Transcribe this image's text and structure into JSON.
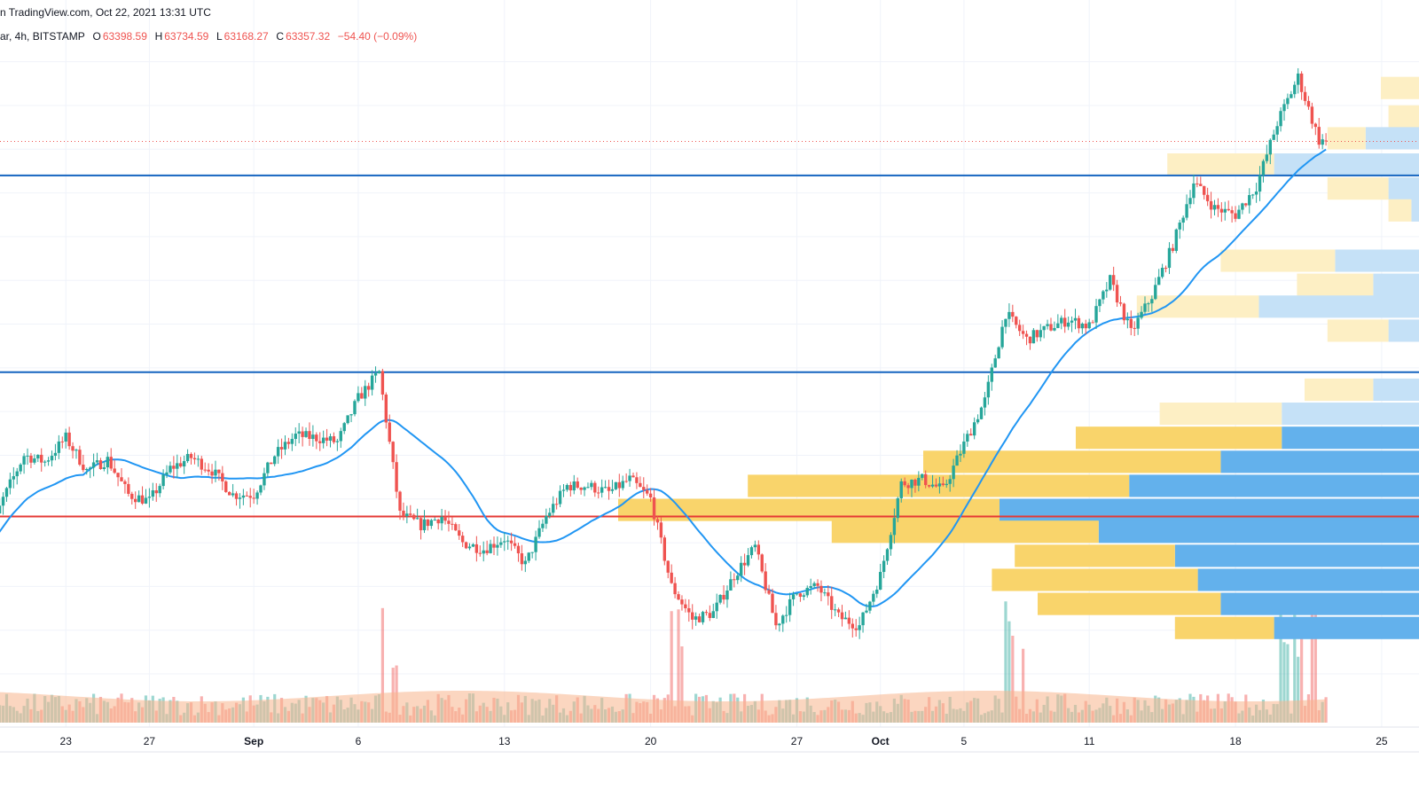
{
  "header": {
    "source_line": "n TradingView.com, Oct 22, 2021 13:31 UTC",
    "symbol_prefix": "ar, 4h, BITSTAMP",
    "open_label": "O",
    "open": "63398.59",
    "high_label": "H",
    "high": "63734.59",
    "low_label": "L",
    "low": "63168.27",
    "close_label": "C",
    "close": "63357.32",
    "change": "−54.40 (−0.09%)"
  },
  "colors": {
    "up": "#26a69a",
    "down": "#ef5350",
    "ma": "#2196f3",
    "level": "#1565c0",
    "support": "#e53935",
    "last_price": "#ef5350",
    "vp_up": "#f9d46b",
    "vp_down": "#63b1ec",
    "vp_up_far": "#fdefc4",
    "vp_down_far": "#c5e1f7",
    "volume_ma": "#f7b58c",
    "grid": "#f0f3fa"
  },
  "chart_data": {
    "type": "candlestick",
    "interval": "4h",
    "exchange": "BITSTAMP",
    "last_ohlc": {
      "open": 63398.59,
      "high": 63734.59,
      "low": 63168.27,
      "close": 63357.32,
      "change": -54.4,
      "change_pct": -0.09
    },
    "x_ticks": [
      "23",
      "27",
      "Sep",
      "6",
      "13",
      "20",
      "27",
      "Oct",
      "5",
      "11",
      "18",
      "25"
    ],
    "bold_ticks": [
      "Sep",
      "Oct"
    ],
    "x_range": [
      "2021-08-19",
      "2021-10-27"
    ],
    "price_range": [
      39000,
      68000
    ],
    "grid": true,
    "horizontal_levels": [
      {
        "price": 61800,
        "kind": "resistance"
      },
      {
        "price": 52800,
        "kind": "resistance"
      },
      {
        "price": 46200,
        "kind": "support"
      }
    ],
    "moving_average_note": "single moving average overlay",
    "price_path": [
      [
        "2021-08-19",
        44500
      ],
      [
        "2021-08-20",
        47000
      ],
      [
        "2021-08-21",
        49000
      ],
      [
        "2021-08-22",
        48700
      ],
      [
        "2021-08-23",
        49800
      ],
      [
        "2021-08-24",
        48300
      ],
      [
        "2021-08-25",
        48800
      ],
      [
        "2021-08-26",
        47200
      ],
      [
        "2021-08-27",
        46900
      ],
      [
        "2021-08-28",
        48400
      ],
      [
        "2021-08-29",
        48900
      ],
      [
        "2021-08-30",
        48300
      ],
      [
        "2021-08-31",
        47200
      ],
      [
        "2021-09-01",
        47200
      ],
      [
        "2021-09-02",
        49000
      ],
      [
        "2021-09-03",
        49900
      ],
      [
        "2021-09-04",
        49800
      ],
      [
        "2021-09-05",
        49600
      ],
      [
        "2021-09-06",
        51600
      ],
      [
        "2021-09-07",
        52800
      ],
      [
        "2021-09-08",
        46300
      ],
      [
        "2021-09-09",
        45800
      ],
      [
        "2021-09-10",
        46200
      ],
      [
        "2021-09-11",
        45000
      ],
      [
        "2021-09-12",
        44700
      ],
      [
        "2021-09-13",
        45200
      ],
      [
        "2021-09-14",
        44000
      ],
      [
        "2021-09-15",
        46200
      ],
      [
        "2021-09-16",
        47600
      ],
      [
        "2021-09-17",
        47600
      ],
      [
        "2021-09-18",
        47300
      ],
      [
        "2021-09-19",
        47900
      ],
      [
        "2021-09-20",
        47000
      ],
      [
        "2021-09-21",
        43000
      ],
      [
        "2021-09-22",
        41500
      ],
      [
        "2021-09-23",
        41800
      ],
      [
        "2021-09-24",
        43500
      ],
      [
        "2021-09-25",
        44800
      ],
      [
        "2021-09-26",
        41200
      ],
      [
        "2021-09-27",
        42700
      ],
      [
        "2021-09-28",
        43000
      ],
      [
        "2021-09-29",
        41600
      ],
      [
        "2021-09-30",
        41200
      ],
      [
        "2021-10-01",
        43500
      ],
      [
        "2021-10-02",
        47700
      ],
      [
        "2021-10-03",
        47900
      ],
      [
        "2021-10-04",
        47400
      ],
      [
        "2021-10-05",
        49500
      ],
      [
        "2021-10-06",
        51500
      ],
      [
        "2021-10-07",
        55500
      ],
      [
        "2021-10-08",
        54300
      ],
      [
        "2021-10-09",
        54800
      ],
      [
        "2021-10-10",
        55200
      ],
      [
        "2021-10-11",
        54900
      ],
      [
        "2021-10-12",
        57000
      ],
      [
        "2021-10-13",
        54600
      ],
      [
        "2021-10-14",
        56300
      ],
      [
        "2021-10-15",
        58600
      ],
      [
        "2021-10-16",
        61500
      ],
      [
        "2021-10-17",
        60300
      ],
      [
        "2021-10-18",
        60000
      ],
      [
        "2021-10-19",
        61300
      ],
      [
        "2021-10-20",
        64200
      ],
      [
        "2021-10-21",
        66300
      ],
      [
        "2021-10-22",
        63400
      ]
    ],
    "volume_ma_level": "moderate",
    "volume_profile_bins": [
      {
        "price": 65800,
        "up": 0.05,
        "down": 0.0
      },
      {
        "price": 64500,
        "up": 0.04,
        "down": 0.0
      },
      {
        "price": 63500,
        "up": 0.05,
        "down": 0.07
      },
      {
        "price": 62300,
        "up": 0.14,
        "down": 0.19
      },
      {
        "price": 61200,
        "up": 0.08,
        "down": 0.04
      },
      {
        "price": 60200,
        "up": 0.03,
        "down": 0.01
      },
      {
        "price": 57900,
        "up": 0.15,
        "down": 0.11
      },
      {
        "price": 56800,
        "up": 0.1,
        "down": 0.06
      },
      {
        "price": 55800,
        "up": 0.16,
        "down": 0.21
      },
      {
        "price": 54700,
        "up": 0.08,
        "down": 0.04
      },
      {
        "price": 52000,
        "up": 0.09,
        "down": 0.06
      },
      {
        "price": 50900,
        "up": 0.16,
        "down": 0.18
      },
      {
        "price": 49800,
        "up": 0.27,
        "down": 0.18
      },
      {
        "price": 48700,
        "up": 0.39,
        "down": 0.26
      },
      {
        "price": 47600,
        "up": 0.5,
        "down": 0.38
      },
      {
        "price": 46500,
        "up": 0.5,
        "down": 0.55
      },
      {
        "price": 45500,
        "up": 0.35,
        "down": 0.42
      },
      {
        "price": 44400,
        "up": 0.21,
        "down": 0.32
      },
      {
        "price": 43300,
        "up": 0.27,
        "down": 0.29
      },
      {
        "price": 42200,
        "up": 0.24,
        "down": 0.26
      },
      {
        "price": 41100,
        "up": 0.13,
        "down": 0.19
      }
    ]
  }
}
